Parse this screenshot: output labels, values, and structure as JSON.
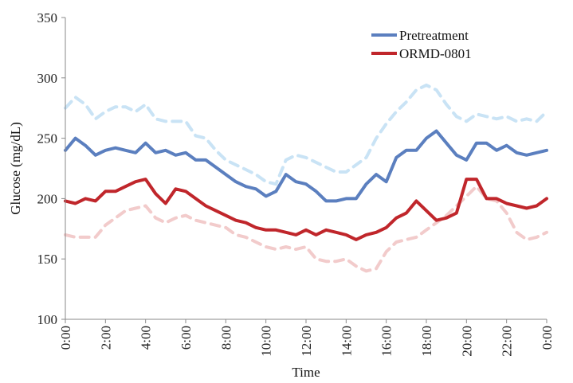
{
  "chart_data": {
    "type": "line",
    "xlabel": "Time",
    "ylabel": "Glucose (mg/dL)",
    "ylim": [
      100,
      350
    ],
    "yticks": [
      100,
      150,
      200,
      250,
      300,
      350
    ],
    "xtick_labels": [
      "0:00",
      "2:00",
      "4:00",
      "6:00",
      "8:00",
      "10:00",
      "12:00",
      "14:00",
      "16:00",
      "18:00",
      "20:00",
      "22:00",
      "0:00"
    ],
    "xlim_hours": [
      0,
      24
    ],
    "legend_position": "top-right",
    "grid": false,
    "x_hours": [
      0,
      0.5,
      1,
      1.5,
      2,
      2.5,
      3,
      3.5,
      4,
      4.5,
      5,
      5.5,
      6,
      6.5,
      7,
      7.5,
      8,
      8.5,
      9,
      9.5,
      10,
      10.5,
      11,
      11.5,
      12,
      12.5,
      13,
      13.5,
      14,
      14.5,
      15,
      15.5,
      16,
      16.5,
      17,
      17.5,
      18,
      18.5,
      19,
      19.5,
      20,
      20.5,
      21,
      21.5,
      22,
      22.5,
      23,
      23.5,
      24
    ],
    "series": [
      {
        "name": "Pretreatment",
        "legend": true,
        "color": "#5B7FBF",
        "dashed": false,
        "values": [
          240,
          250,
          244,
          236,
          240,
          242,
          240,
          238,
          246,
          238,
          240,
          236,
          238,
          232,
          232,
          226,
          220,
          214,
          210,
          208,
          202,
          206,
          220,
          214,
          212,
          206,
          198,
          198,
          200,
          200,
          212,
          220,
          214,
          234,
          240,
          240,
          250,
          256,
          246,
          236,
          232,
          246,
          246,
          240,
          244,
          238,
          236,
          238,
          240
        ]
      },
      {
        "name": "ORMD-0801",
        "legend": true,
        "color": "#C0262B",
        "dashed": false,
        "values": [
          198,
          196,
          200,
          198,
          206,
          206,
          210,
          214,
          216,
          204,
          196,
          208,
          206,
          200,
          194,
          190,
          186,
          182,
          180,
          176,
          174,
          174,
          172,
          170,
          174,
          170,
          174,
          172,
          170,
          166,
          170,
          172,
          176,
          184,
          188,
          198,
          190,
          182,
          184,
          188,
          216,
          216,
          200,
          200,
          196,
          194,
          192,
          194,
          200
        ]
      },
      {
        "name": "",
        "legend": false,
        "color": "#C9E3F5",
        "dashed": true,
        "values": [
          275,
          284,
          278,
          266,
          272,
          276,
          276,
          272,
          278,
          266,
          264,
          264,
          264,
          252,
          250,
          240,
          232,
          228,
          224,
          220,
          214,
          212,
          232,
          236,
          234,
          230,
          226,
          222,
          222,
          228,
          234,
          250,
          262,
          272,
          280,
          290,
          294,
          290,
          278,
          268,
          264,
          270,
          268,
          266,
          268,
          264,
          266,
          264,
          272
        ]
      },
      {
        "name": "",
        "legend": false,
        "color": "#F2CBCB",
        "dashed": true,
        "values": [
          170,
          168,
          168,
          168,
          178,
          184,
          190,
          192,
          194,
          184,
          180,
          184,
          186,
          182,
          180,
          178,
          176,
          170,
          168,
          164,
          160,
          158,
          160,
          158,
          160,
          150,
          148,
          148,
          150,
          144,
          140,
          142,
          156,
          164,
          166,
          168,
          174,
          180,
          186,
          194,
          202,
          210,
          200,
          198,
          188,
          172,
          166,
          168,
          172
        ]
      }
    ]
  }
}
